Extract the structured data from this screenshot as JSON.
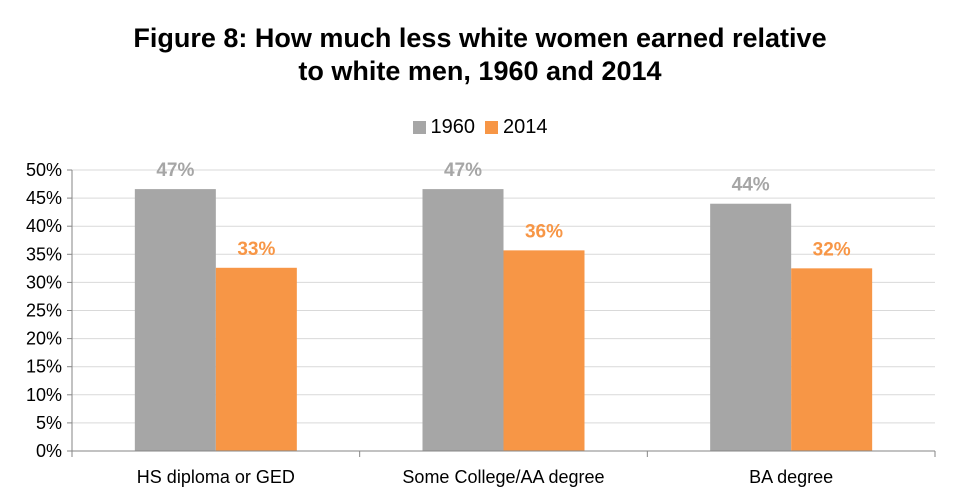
{
  "title_lines": [
    "Figure 8: How much less white women earned relative",
    "to white men, 1960 and 2014"
  ],
  "chart_data": {
    "type": "bar",
    "title": "Figure 8: How much less white women earned relative to white men, 1960 and 2014",
    "categories": [
      "HS diploma or GED",
      "Some College/AA degree",
      "BA degree"
    ],
    "series": [
      {
        "name": "1960",
        "color": "#A6A6A6",
        "values": [
          0.466,
          0.466,
          0.44
        ],
        "labels": [
          "47%",
          "47%",
          "44%"
        ]
      },
      {
        "name": "2014",
        "color": "#F79646",
        "values": [
          0.326,
          0.357,
          0.325
        ],
        "labels": [
          "33%",
          "36%",
          "32%"
        ]
      }
    ],
    "ylim": [
      0,
      0.5
    ],
    "yticks": [
      "0%",
      "5%",
      "10%",
      "15%",
      "20%",
      "25%",
      "30%",
      "35%",
      "40%",
      "45%",
      "50%"
    ],
    "grid": true,
    "legend": "top-center",
    "xlabel": "",
    "ylabel": ""
  }
}
